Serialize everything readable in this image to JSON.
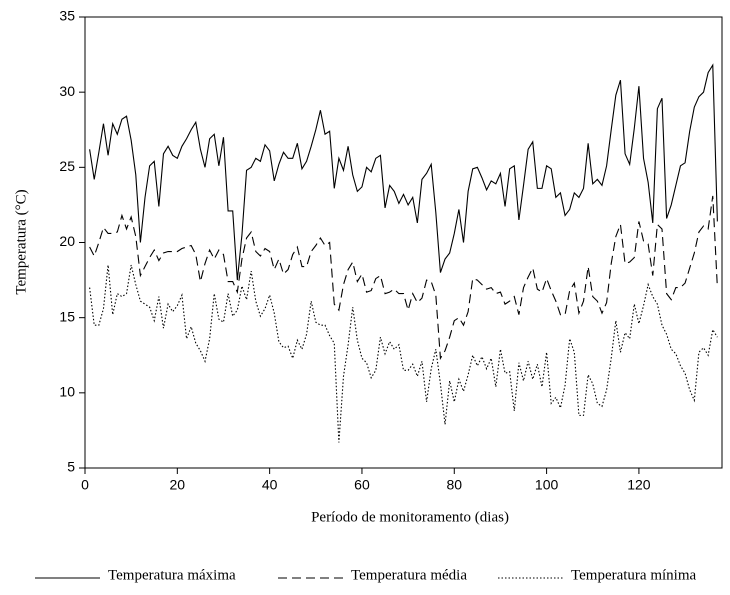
{
  "chart_data": {
    "type": "line",
    "x_label": "Período de monitoramento (dias)",
    "y_label": "Temperatura (°C)",
    "x": [
      1,
      2,
      3,
      4,
      5,
      6,
      7,
      8,
      9,
      10,
      11,
      12,
      13,
      14,
      15,
      16,
      17,
      18,
      19,
      20,
      21,
      22,
      23,
      24,
      25,
      26,
      27,
      28,
      29,
      30,
      31,
      32,
      33,
      34,
      35,
      36,
      37,
      38,
      39,
      40,
      41,
      42,
      43,
      44,
      45,
      46,
      47,
      48,
      49,
      50,
      51,
      52,
      53,
      54,
      55,
      56,
      57,
      58,
      59,
      60,
      61,
      62,
      63,
      64,
      65,
      66,
      67,
      68,
      69,
      70,
      71,
      72,
      73,
      74,
      75,
      76,
      77,
      78,
      79,
      80,
      81,
      82,
      83,
      84,
      85,
      86,
      87,
      88,
      89,
      90,
      91,
      92,
      93,
      94,
      95,
      96,
      97,
      98,
      99,
      100,
      101,
      102,
      103,
      104,
      105,
      106,
      107,
      108,
      109,
      110,
      111,
      112,
      113,
      114,
      115,
      116,
      117,
      118,
      119,
      120,
      121,
      122,
      123,
      124,
      125,
      126,
      127,
      128,
      129,
      130,
      131,
      132,
      133,
      134,
      135,
      136,
      137
    ],
    "series": [
      {
        "name": "Temperatura máxima",
        "color": "#000000",
        "dash": "solid",
        "values": [
          26.2,
          24.2,
          26,
          27.9,
          25.8,
          27.9,
          27.2,
          28.2,
          28.4,
          26.8,
          24.5,
          20,
          23,
          25.1,
          25.4,
          22.4,
          25.9,
          26.4,
          25.8,
          25.6,
          26.4,
          26.9,
          27.5,
          28,
          26.2,
          25,
          26.9,
          27.2,
          25.1,
          27,
          22.1,
          22.1,
          17.5,
          20.5,
          24.8,
          25,
          25.6,
          25.4,
          26.5,
          26.1,
          24.1,
          25.2,
          26,
          25.6,
          25.6,
          26.6,
          24.9,
          25.4,
          26.4,
          27.5,
          28.8,
          27.2,
          27.4,
          23.6,
          25.6,
          24.8,
          26.4,
          24.5,
          23.4,
          23.7,
          25,
          24.7,
          25.6,
          25.8,
          22.3,
          23.8,
          23.4,
          22.6,
          23.2,
          22.5,
          23,
          21.3,
          24.2,
          24.6,
          25.2,
          22,
          18,
          18.9,
          19.3,
          20.6,
          22.2,
          20,
          23.4,
          24.9,
          25,
          24.3,
          23.5,
          24.1,
          23.9,
          24.6,
          22.4,
          24.9,
          25.1,
          21.5,
          23.8,
          26.2,
          26.7,
          23.6,
          23.6,
          25.1,
          24.9,
          23,
          23.3,
          21.8,
          22.2,
          23.3,
          23,
          23.6,
          26.6,
          23.9,
          24.2,
          23.8,
          25.1,
          27.5,
          29.8,
          30.8,
          25.9,
          25.2,
          27.6,
          30.4,
          25.6,
          24,
          21.3,
          28.9,
          29.6,
          21.6,
          22.5,
          23.8,
          25.1,
          25.3,
          27.4,
          29,
          29.7,
          30,
          31.3,
          31.8,
          21.4
        ]
      },
      {
        "name": "Temperatura média",
        "color": "#000000",
        "dash": "dashed",
        "values": [
          19.7,
          19.1,
          20,
          21,
          20.6,
          20.6,
          20.7,
          21.8,
          20.9,
          21.7,
          20.4,
          17.8,
          18.4,
          19,
          19.5,
          18.8,
          19.3,
          19.4,
          19.4,
          19.4,
          19.6,
          19.7,
          19.8,
          19.2,
          17.4,
          18.6,
          19.5,
          18.9,
          19.5,
          19.2,
          17.4,
          17.4,
          16.7,
          18.9,
          20.3,
          20.7,
          19.4,
          19.1,
          19.6,
          19.4,
          18.2,
          18.9,
          17.9,
          18.2,
          19.2,
          19.7,
          18.4,
          18.4,
          19.4,
          19.8,
          20.3,
          19.8,
          20,
          15.9,
          15.5,
          17.2,
          18.2,
          18.7,
          17.4,
          17.9,
          16.7,
          16.8,
          17.6,
          17.8,
          16.6,
          16.7,
          16.9,
          16.6,
          16.6,
          15.5,
          16.6,
          16,
          16.3,
          17.5,
          17.4,
          16.5,
          12.3,
          12.8,
          13.7,
          14.8,
          15,
          14.5,
          15.4,
          17.6,
          17.5,
          17.2,
          16.9,
          17,
          16.6,
          16.7,
          15.9,
          16.1,
          16.4,
          15.2,
          17,
          17.7,
          18.3,
          16.9,
          16.7,
          17.6,
          16.8,
          16.1,
          15.2,
          15.2,
          16.8,
          17.3,
          15.3,
          16.1,
          18.4,
          16.4,
          16.1,
          15.3,
          16,
          18.6,
          20.4,
          21.2,
          18.6,
          18.7,
          19,
          21.4,
          20.1,
          19.9,
          17.8,
          21.2,
          20.9,
          16.6,
          16.2,
          17,
          17,
          17.3,
          18.3,
          19.3,
          20.7,
          21.1,
          20.9,
          23.1,
          17
        ]
      },
      {
        "name": "Temperatura mínima",
        "color": "#000000",
        "dash": "dotted",
        "values": [
          17,
          14.5,
          14.5,
          15.6,
          18.5,
          15.2,
          16.6,
          16.4,
          16.6,
          18.5,
          17.2,
          16.1,
          15.9,
          15.7,
          14.8,
          16.4,
          14.3,
          15.9,
          15.4,
          15.8,
          16.5,
          13.6,
          14.4,
          13.3,
          12.8,
          12.1,
          13.6,
          16.6,
          14.9,
          14.7,
          16.6,
          15.1,
          15.5,
          17.1,
          16.2,
          18.1,
          16.1,
          15.1,
          15.6,
          16.5,
          15.3,
          13.4,
          13,
          13.1,
          12.3,
          13.5,
          12.9,
          13.9,
          16.1,
          14.7,
          14.5,
          14.5,
          13.8,
          13.3,
          6.7,
          11.1,
          13.2,
          15.7,
          13.5,
          12.3,
          12,
          11,
          11.5,
          13.7,
          12.6,
          13.4,
          12.9,
          13.2,
          11.5,
          11.5,
          11.9,
          11.1,
          12.1,
          9.4,
          11.6,
          12.9,
          10.6,
          7.9,
          10.8,
          9.4,
          10.9,
          10.1,
          11.2,
          12.5,
          11.8,
          12.4,
          11.6,
          12.3,
          10.4,
          12.9,
          11.3,
          11.4,
          8.8,
          12,
          10.8,
          12.1,
          10.9,
          11.9,
          10.4,
          12.7,
          9.3,
          9.7,
          9,
          10.5,
          13.6,
          12.7,
          8.5,
          8.5,
          11.2,
          10.6,
          9.3,
          9.1,
          10.2,
          12.3,
          14.8,
          12.7,
          14,
          13.6,
          15.9,
          14.6,
          15.8,
          17.2,
          16.4,
          15.9,
          14.5,
          13.9,
          12.9,
          12.6,
          11.8,
          11.3,
          10.2,
          9.5,
          12.7,
          13,
          12.5,
          14.2,
          13.7
        ]
      }
    ],
    "xlim": [
      0,
      138
    ],
    "xticks": [
      0,
      20,
      40,
      60,
      80,
      100,
      120
    ],
    "ylim": [
      5,
      35
    ],
    "yticks": [
      5,
      10,
      15,
      20,
      25,
      30,
      35
    ],
    "legend": "bottom"
  }
}
